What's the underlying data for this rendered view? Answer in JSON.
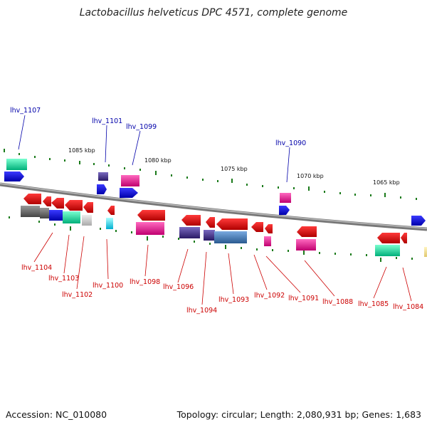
{
  "title": "Lactobacillus helveticus DPC 4571, complete genome",
  "footer": {
    "accession": "Accession: NC_010080",
    "summary": "Topology: circular; Length: 2,080,931 bp; Genes: 1,683"
  },
  "ticks": [
    {
      "label": "1085 kbp"
    },
    {
      "label": "1080 kbp"
    },
    {
      "label": "1075 kbp"
    },
    {
      "label": "1070 kbp"
    },
    {
      "label": "1065 kbp"
    }
  ],
  "gene_labels_top": [
    {
      "text": "lhv_1107",
      "color": "#0000aa"
    },
    {
      "text": "lhv_1101",
      "color": "#0000aa"
    },
    {
      "text": "lhv_1099",
      "color": "#0000aa"
    },
    {
      "text": "lhv_1090",
      "color": "#0000aa"
    }
  ],
  "gene_labels_bottom": [
    {
      "text": "lhv_1104",
      "color": "#cc0000"
    },
    {
      "text": "lhv_1103",
      "color": "#cc0000"
    },
    {
      "text": "lhv_1102",
      "color": "#cc0000"
    },
    {
      "text": "lhv_1100",
      "color": "#cc0000"
    },
    {
      "text": "lhv_1098",
      "color": "#cc0000"
    },
    {
      "text": "lhv_1096",
      "color": "#cc0000"
    },
    {
      "text": "lhv_1094",
      "color": "#cc0000"
    },
    {
      "text": "lhv_1093",
      "color": "#cc0000"
    },
    {
      "text": "lhv_1092",
      "color": "#cc0000"
    },
    {
      "text": "lhv_1091",
      "color": "#cc0000"
    },
    {
      "text": "lhv_1088",
      "color": "#cc0000"
    },
    {
      "text": "lhv_1085",
      "color": "#cc0000"
    },
    {
      "text": "lhv_1084",
      "color": "#cc0000"
    }
  ],
  "colors": {
    "backbone": "#888888",
    "forward_gene": "#0000ff",
    "reverse_gene": "#ff0000",
    "tick_mark": "#1a7a1a",
    "cog_green": "#00e0a0",
    "cog_pink": "#ee1090",
    "cog_purple": "#443388",
    "cog_steel": "#4a7ab0",
    "cog_gray": "#666666",
    "cog_light": "#c8c8c8",
    "cog_cyan": "#00e8ff",
    "cog_yellow": "#f0e08a"
  }
}
